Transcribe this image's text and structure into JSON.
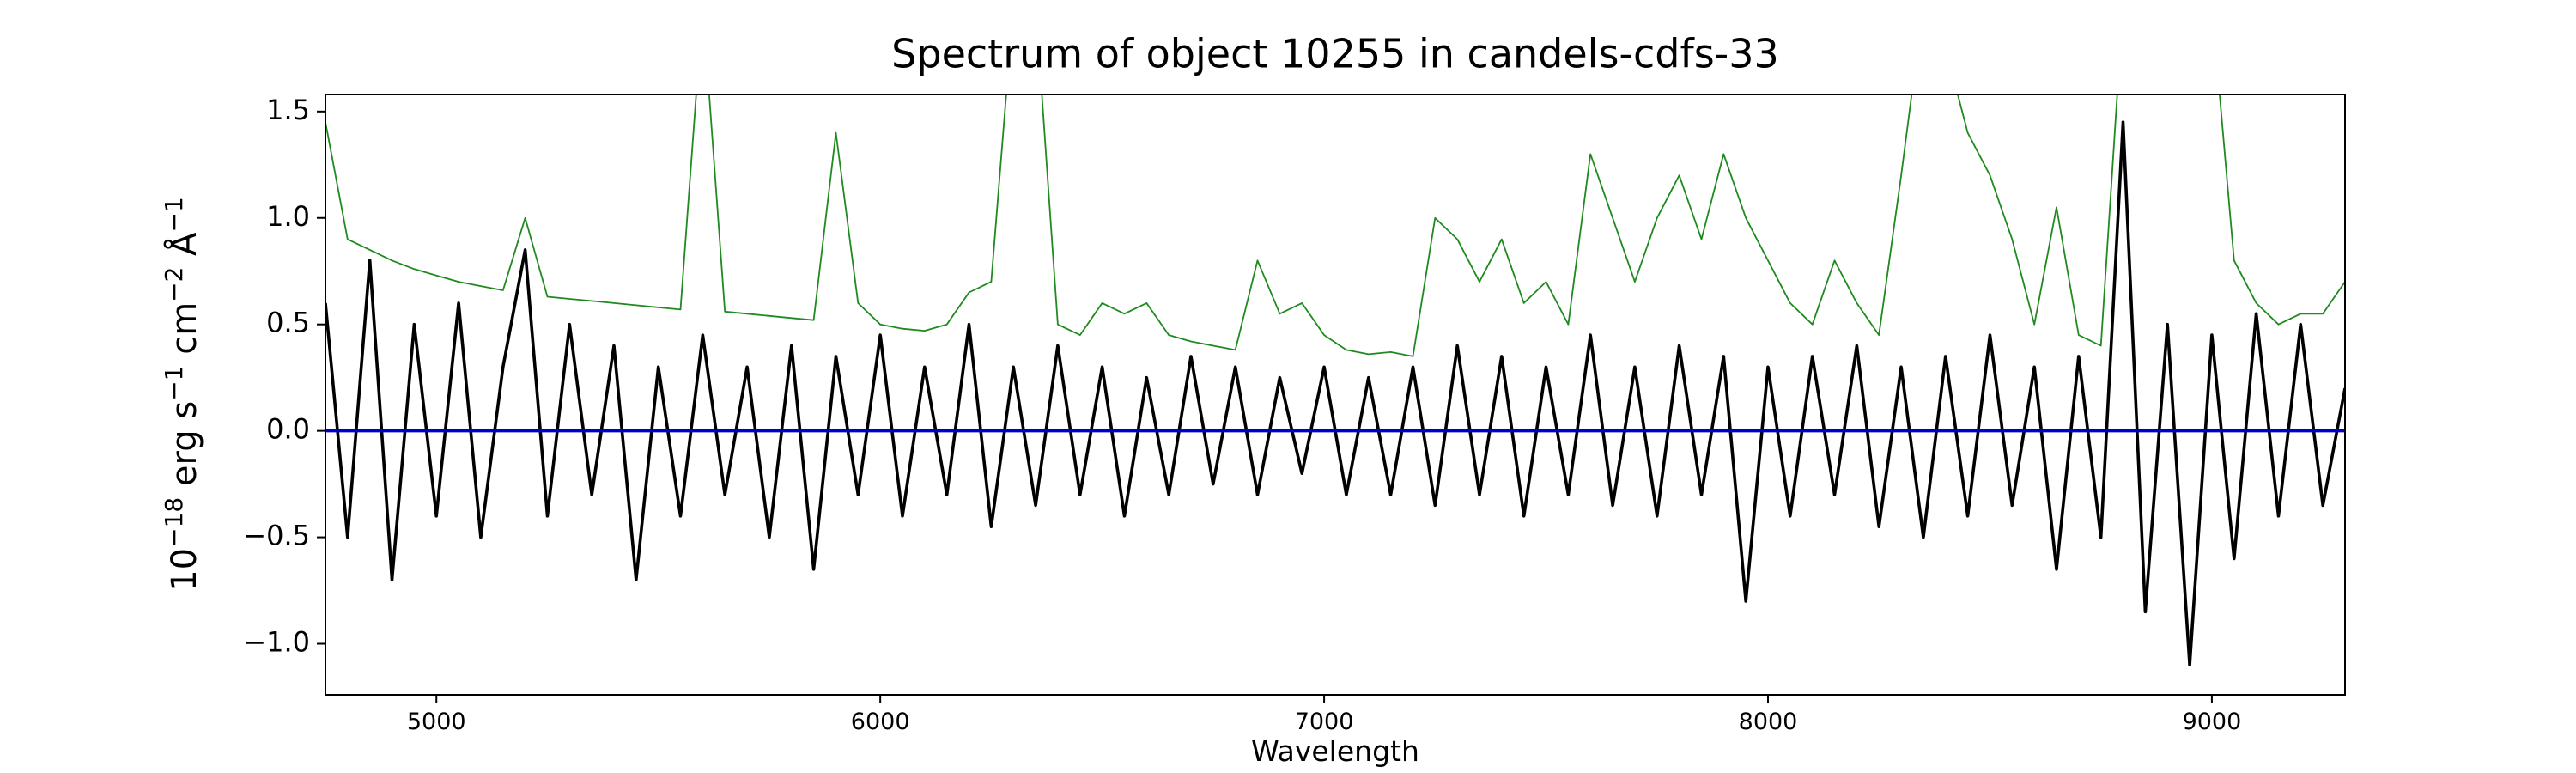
{
  "chart_data": {
    "type": "line",
    "title": "Spectrum of object 10255 in candels-cdfs-33",
    "xlabel": "Wavelength",
    "ylabel": [
      "10",
      "−18",
      " erg s",
      "−1",
      " cm",
      "−2",
      " Å",
      "−1"
    ],
    "xlim": [
      4750,
      9300
    ],
    "ylim": [
      -1.24,
      1.58
    ],
    "xticks": [
      5000,
      6000,
      7000,
      8000,
      9000
    ],
    "yticks": [
      {
        "value": -1.0,
        "label": "−1.0"
      },
      {
        "value": -0.5,
        "label": "−0.5"
      },
      {
        "value": 0.0,
        "label": "0.0"
      },
      {
        "value": 0.5,
        "label": "0.5"
      },
      {
        "value": 1.0,
        "label": "1.0"
      },
      {
        "value": 1.5,
        "label": "1.5"
      }
    ],
    "grid": false,
    "x": [
      4750,
      4800,
      4850,
      4900,
      4950,
      5000,
      5050,
      5100,
      5150,
      5200,
      5250,
      5300,
      5350,
      5400,
      5450,
      5500,
      5550,
      5600,
      5650,
      5700,
      5750,
      5800,
      5850,
      5900,
      5950,
      6000,
      6050,
      6100,
      6150,
      6200,
      6250,
      6300,
      6350,
      6400,
      6450,
      6500,
      6550,
      6600,
      6650,
      6700,
      6750,
      6800,
      6850,
      6900,
      6950,
      7000,
      7050,
      7100,
      7150,
      7200,
      7250,
      7300,
      7350,
      7400,
      7450,
      7500,
      7550,
      7600,
      7650,
      7700,
      7750,
      7800,
      7850,
      7900,
      7950,
      8000,
      8050,
      8100,
      8150,
      8200,
      8250,
      8300,
      8350,
      8400,
      8450,
      8500,
      8550,
      8600,
      8650,
      8700,
      8750,
      8800,
      8850,
      8900,
      8950,
      9000,
      9050,
      9100,
      9150,
      9200,
      9250,
      9300
    ],
    "series": [
      {
        "color": "#1f8a1f",
        "width": 1,
        "values": [
          1.45,
          0.9,
          0.85,
          0.8,
          0.76,
          0.73,
          0.7,
          0.68,
          0.66,
          1.0,
          0.63,
          0.62,
          0.61,
          0.6,
          0.59,
          0.58,
          0.57,
          2.0,
          0.56,
          0.55,
          0.54,
          0.53,
          0.52,
          1.4,
          0.6,
          0.5,
          0.48,
          0.47,
          0.5,
          0.65,
          0.7,
          2.0,
          2.0,
          0.5,
          0.45,
          0.6,
          0.55,
          0.6,
          0.45,
          0.42,
          0.4,
          0.38,
          0.8,
          0.55,
          0.6,
          0.45,
          0.38,
          0.36,
          0.37,
          0.35,
          1.0,
          0.9,
          0.7,
          0.9,
          0.6,
          0.7,
          0.5,
          1.3,
          1.0,
          0.7,
          1.0,
          1.2,
          0.9,
          1.3,
          1.0,
          0.8,
          0.6,
          0.5,
          0.8,
          0.6,
          0.45,
          1.2,
          2.0,
          1.8,
          1.4,
          1.2,
          0.9,
          0.5,
          1.05,
          0.45,
          0.4,
          2.0,
          1.8,
          2.0,
          1.6,
          2.0,
          0.8,
          0.6,
          0.5,
          0.55,
          0.55,
          0.7
        ]
      },
      {
        "color": "#000000",
        "width": 2,
        "values": [
          0.6,
          -0.5,
          0.8,
          -0.7,
          0.5,
          -0.4,
          0.6,
          -0.5,
          0.3,
          0.85,
          -0.4,
          0.5,
          -0.3,
          0.4,
          -0.7,
          0.3,
          -0.4,
          0.45,
          -0.3,
          0.3,
          -0.5,
          0.4,
          -0.65,
          0.35,
          -0.3,
          0.45,
          -0.4,
          0.3,
          -0.3,
          0.5,
          -0.45,
          0.3,
          -0.35,
          0.4,
          -0.3,
          0.3,
          -0.4,
          0.25,
          -0.3,
          0.35,
          -0.25,
          0.3,
          -0.3,
          0.25,
          -0.2,
          0.3,
          -0.3,
          0.25,
          -0.3,
          0.3,
          -0.35,
          0.4,
          -0.3,
          0.35,
          -0.4,
          0.3,
          -0.3,
          0.45,
          -0.35,
          0.3,
          -0.4,
          0.4,
          -0.3,
          0.35,
          -0.8,
          0.3,
          -0.4,
          0.35,
          -0.3,
          0.4,
          -0.45,
          0.3,
          -0.5,
          0.35,
          -0.4,
          0.45,
          -0.35,
          0.3,
          -0.65,
          0.35,
          -0.5,
          1.45,
          -0.85,
          0.5,
          -1.1,
          0.45,
          -0.6,
          0.55,
          -0.4,
          0.5,
          -0.35,
          0.2
        ]
      },
      {
        "color": "#0000cc",
        "width": 2,
        "x": [
          4750,
          9300
        ],
        "values": [
          0,
          0
        ]
      }
    ]
  }
}
